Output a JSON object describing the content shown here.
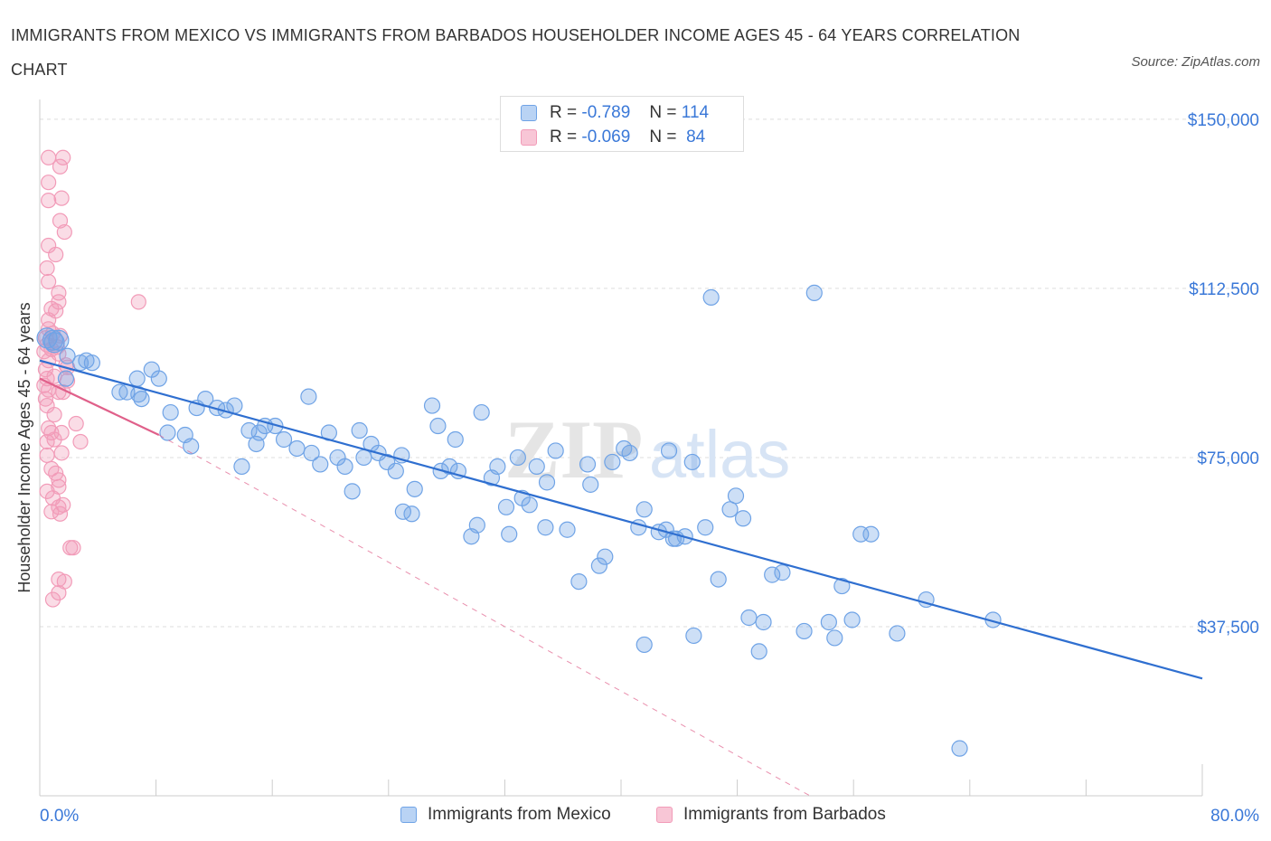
{
  "title": "IMMIGRANTS FROM MEXICO VS IMMIGRANTS FROM BARBADOS HOUSEHOLDER INCOME AGES 45 - 64 YEARS CORRELATION CHART",
  "source": "Source: ZipAtlas.com",
  "watermark": {
    "zip": "ZIP",
    "atlas": "atlas"
  },
  "colors": {
    "mexico": "#6fa3e6",
    "mexico_line": "#2f6fd0",
    "barbados": "#f29bb8",
    "barbados_line": "#e0608a",
    "axis_text": "#3a78d8",
    "grid": "#dddddd"
  },
  "stats": [
    {
      "r_label": "R =",
      "r_value": "-0.789",
      "n_label": "N =",
      "n_value": "114"
    },
    {
      "r_label": "R =",
      "r_value": "-0.069",
      "n_label": "N =",
      "n_value": "84"
    }
  ],
  "chart_data": {
    "type": "scatter",
    "title": "IMMIGRANTS FROM MEXICO VS IMMIGRANTS FROM BARBADOS HOUSEHOLDER INCOME AGES 45 - 64 YEARS CORRELATION CHART",
    "xlabel": "",
    "ylabel": "Householder Income Ages 45 - 64 years",
    "xlim": [
      0,
      80
    ],
    "ylim": [
      0,
      160000
    ],
    "x_tick_labels": [
      "0.0%",
      "80.0%"
    ],
    "y_ticks": [
      37500,
      75000,
      112500,
      150000
    ],
    "y_tick_labels": [
      "$37,500",
      "$75,000",
      "$112,500",
      "$150,000"
    ],
    "grid": "horizontal dashed",
    "legend_position": "bottom",
    "series": [
      {
        "name": "Immigrants from Mexico",
        "trend": {
          "x": [
            0,
            80
          ],
          "y": [
            96500,
            26000
          ]
        },
        "points": [
          [
            0.5,
            101500
          ],
          [
            0.9,
            101000
          ],
          [
            1.0,
            100500
          ],
          [
            1.3,
            101000
          ],
          [
            1.9,
            97500
          ],
          [
            2.8,
            96000
          ],
          [
            3.2,
            96500
          ],
          [
            3.6,
            96000
          ],
          [
            1.8,
            92500
          ],
          [
            5.5,
            89500
          ],
          [
            6.0,
            89500
          ],
          [
            6.7,
            92500
          ],
          [
            7.7,
            94500
          ],
          [
            8.2,
            92500
          ],
          [
            6.8,
            89000
          ],
          [
            7.0,
            88000
          ],
          [
            9.0,
            85000
          ],
          [
            10.0,
            80000
          ],
          [
            10.4,
            77500
          ],
          [
            8.8,
            80500
          ],
          [
            11.4,
            88000
          ],
          [
            10.8,
            86000
          ],
          [
            12.2,
            86000
          ],
          [
            12.8,
            85500
          ],
          [
            13.4,
            86500
          ],
          [
            13.9,
            73000
          ],
          [
            14.4,
            81000
          ],
          [
            14.9,
            78000
          ],
          [
            15.5,
            82000
          ],
          [
            16.2,
            82000
          ],
          [
            15.1,
            80500
          ],
          [
            16.8,
            79000
          ],
          [
            17.7,
            77000
          ],
          [
            18.5,
            88500
          ],
          [
            18.7,
            76000
          ],
          [
            19.3,
            73500
          ],
          [
            19.9,
            80500
          ],
          [
            20.5,
            75000
          ],
          [
            21.0,
            73000
          ],
          [
            21.5,
            67500
          ],
          [
            22.0,
            81000
          ],
          [
            22.8,
            78000
          ],
          [
            22.3,
            75000
          ],
          [
            23.3,
            76000
          ],
          [
            23.9,
            74000
          ],
          [
            24.5,
            72000
          ],
          [
            24.9,
            75500
          ],
          [
            25.0,
            63000
          ],
          [
            25.6,
            62500
          ],
          [
            25.8,
            68000
          ],
          [
            27.0,
            86500
          ],
          [
            27.4,
            82000
          ],
          [
            27.6,
            72000
          ],
          [
            28.2,
            73000
          ],
          [
            28.8,
            72000
          ],
          [
            28.6,
            79000
          ],
          [
            29.7,
            57500
          ],
          [
            30.1,
            60000
          ],
          [
            30.4,
            85000
          ],
          [
            31.1,
            70500
          ],
          [
            31.5,
            73000
          ],
          [
            32.1,
            64000
          ],
          [
            32.3,
            58000
          ],
          [
            32.9,
            75000
          ],
          [
            33.2,
            66000
          ],
          [
            33.7,
            64500
          ],
          [
            34.2,
            73000
          ],
          [
            34.8,
            59500
          ],
          [
            34.9,
            69500
          ],
          [
            35.5,
            76500
          ],
          [
            36.3,
            59000
          ],
          [
            37.1,
            47500
          ],
          [
            37.7,
            73500
          ],
          [
            37.9,
            69000
          ],
          [
            38.5,
            51000
          ],
          [
            38.9,
            53000
          ],
          [
            39.4,
            74000
          ],
          [
            40.2,
            77000
          ],
          [
            40.6,
            76000
          ],
          [
            41.2,
            59500
          ],
          [
            41.6,
            63500
          ],
          [
            41.6,
            33500
          ],
          [
            42.6,
            58500
          ],
          [
            43.1,
            59000
          ],
          [
            43.3,
            76500
          ],
          [
            43.6,
            57000
          ],
          [
            43.8,
            57000
          ],
          [
            44.4,
            57500
          ],
          [
            44.9,
            74000
          ],
          [
            45.0,
            35500
          ],
          [
            45.8,
            59500
          ],
          [
            46.2,
            110500
          ],
          [
            46.7,
            48000
          ],
          [
            47.5,
            63500
          ],
          [
            47.9,
            66500
          ],
          [
            48.4,
            61500
          ],
          [
            48.8,
            39500
          ],
          [
            49.8,
            38500
          ],
          [
            50.4,
            49000
          ],
          [
            51.1,
            49500
          ],
          [
            49.5,
            32000
          ],
          [
            52.6,
            36500
          ],
          [
            53.3,
            111500
          ],
          [
            54.3,
            38500
          ],
          [
            54.7,
            35000
          ],
          [
            55.2,
            46500
          ],
          [
            55.9,
            39000
          ],
          [
            57.2,
            58000
          ],
          [
            59.0,
            36000
          ],
          [
            61.0,
            43500
          ],
          [
            63.3,
            10500
          ],
          [
            65.6,
            39000
          ],
          [
            56.5,
            58000
          ]
        ]
      },
      {
        "name": "Immigrants from Barbados",
        "trend": {
          "x": [
            0,
            8.2
          ],
          "y": [
            92500,
            80000
          ]
        },
        "trend_extension": {
          "x": [
            8.2,
            53.0
          ],
          "y": [
            80000,
            0
          ]
        },
        "points": [
          [
            0.6,
            141500
          ],
          [
            1.6,
            141500
          ],
          [
            1.4,
            139500
          ],
          [
            0.6,
            136000
          ],
          [
            1.5,
            132500
          ],
          [
            0.6,
            132000
          ],
          [
            1.4,
            127500
          ],
          [
            1.7,
            125000
          ],
          [
            0.6,
            122000
          ],
          [
            1.1,
            120000
          ],
          [
            0.5,
            117000
          ],
          [
            0.6,
            114000
          ],
          [
            1.3,
            111500
          ],
          [
            1.3,
            109500
          ],
          [
            6.8,
            109500
          ],
          [
            0.8,
            108000
          ],
          [
            1.1,
            107500
          ],
          [
            0.6,
            105500
          ],
          [
            0.6,
            103500
          ],
          [
            0.9,
            102500
          ],
          [
            1.4,
            102000
          ],
          [
            0.4,
            101500
          ],
          [
            0.5,
            100000
          ],
          [
            0.8,
            99000
          ],
          [
            1.2,
            99500
          ],
          [
            0.3,
            98500
          ],
          [
            1.3,
            98000
          ],
          [
            0.6,
            96500
          ],
          [
            1.8,
            95500
          ],
          [
            1.9,
            95000
          ],
          [
            0.4,
            94500
          ],
          [
            1.0,
            93000
          ],
          [
            0.5,
            92500
          ],
          [
            1.9,
            92000
          ],
          [
            0.3,
            91000
          ],
          [
            0.6,
            90000
          ],
          [
            1.3,
            89500
          ],
          [
            1.6,
            89500
          ],
          [
            0.4,
            88000
          ],
          [
            0.5,
            86500
          ],
          [
            1.0,
            84500
          ],
          [
            2.5,
            82500
          ],
          [
            0.6,
            81500
          ],
          [
            0.8,
            80500
          ],
          [
            1.5,
            80500
          ],
          [
            1.0,
            79000
          ],
          [
            0.5,
            78500
          ],
          [
            2.8,
            78500
          ],
          [
            1.5,
            76000
          ],
          [
            0.5,
            75500
          ],
          [
            0.8,
            72500
          ],
          [
            1.1,
            71500
          ],
          [
            1.3,
            70000
          ],
          [
            1.3,
            68500
          ],
          [
            0.5,
            67500
          ],
          [
            0.9,
            66000
          ],
          [
            1.3,
            64000
          ],
          [
            1.6,
            64500
          ],
          [
            0.8,
            63000
          ],
          [
            1.4,
            62500
          ],
          [
            2.3,
            55000
          ],
          [
            2.1,
            55000
          ],
          [
            1.3,
            48000
          ],
          [
            1.7,
            47500
          ],
          [
            1.3,
            45000
          ],
          [
            0.9,
            43500
          ]
        ]
      }
    ]
  }
}
